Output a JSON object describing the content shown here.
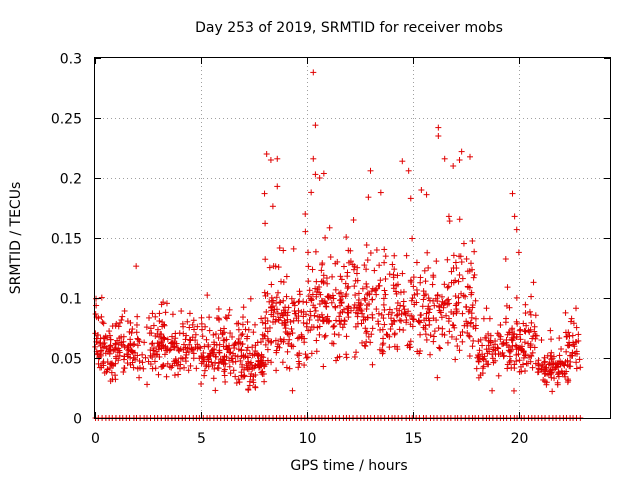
{
  "chart_data": {
    "type": "scatter",
    "title": "Day 253 of 2019, SRMTID for receiver mobs",
    "xlabel": "GPS time / hours",
    "ylabel": "SRMTID / TECUs",
    "xlim": [
      0,
      24.3
    ],
    "ylim": [
      0,
      0.3
    ],
    "x_ticks": [
      0,
      5,
      10,
      15,
      20
    ],
    "x_tick_labels": [
      "0",
      "5",
      "10",
      "15",
      "20"
    ],
    "y_ticks": [
      0,
      0.05,
      0.1,
      0.15,
      0.2,
      0.25,
      0.3
    ],
    "y_tick_labels": [
      "0",
      "0.05",
      "0.1",
      "0.15",
      "0.2",
      "0.25",
      "0.3"
    ],
    "grid": true,
    "marker": "+",
    "color": "#e00000",
    "series": [
      {
        "name": "SRMTID",
        "segments": [
          {
            "x_range": [
              0.0,
              1.5
            ],
            "center": 0.058,
            "spread": 0.022,
            "count": 110
          },
          {
            "x_range": [
              1.5,
              5.0
            ],
            "center": 0.06,
            "spread": 0.022,
            "count": 200
          },
          {
            "x_range": [
              5.0,
              7.2
            ],
            "center": 0.055,
            "spread": 0.022,
            "count": 160
          },
          {
            "x_range": [
              7.2,
              8.0
            ],
            "center": 0.045,
            "spread": 0.02,
            "count": 70
          },
          {
            "x_range": [
              8.0,
              10.0
            ],
            "center": 0.08,
            "spread": 0.035,
            "count": 150
          },
          {
            "x_range": [
              10.0,
              13.5
            ],
            "center": 0.095,
            "spread": 0.035,
            "count": 230
          },
          {
            "x_range": [
              13.5,
              18.0
            ],
            "center": 0.095,
            "spread": 0.04,
            "count": 270
          },
          {
            "x_range": [
              18.0,
              19.2
            ],
            "center": 0.055,
            "spread": 0.018,
            "count": 60
          },
          {
            "x_range": [
              19.2,
              20.8
            ],
            "center": 0.065,
            "spread": 0.025,
            "count": 110
          },
          {
            "x_range": [
              20.8,
              22.2
            ],
            "center": 0.04,
            "spread": 0.012,
            "count": 80
          },
          {
            "x_range": [
              22.2,
              22.9
            ],
            "center": 0.055,
            "spread": 0.022,
            "count": 45
          }
        ],
        "outliers": [
          {
            "x": 10.3,
            "y": 0.288
          },
          {
            "x": 10.4,
            "y": 0.244
          },
          {
            "x": 16.2,
            "y": 0.242
          },
          {
            "x": 16.2,
            "y": 0.235
          },
          {
            "x": 8.1,
            "y": 0.22
          },
          {
            "x": 8.3,
            "y": 0.215
          },
          {
            "x": 8.6,
            "y": 0.216
          },
          {
            "x": 10.3,
            "y": 0.216
          },
          {
            "x": 14.5,
            "y": 0.214
          },
          {
            "x": 17.3,
            "y": 0.222
          },
          {
            "x": 16.5,
            "y": 0.216
          },
          {
            "x": 17.2,
            "y": 0.215
          },
          {
            "x": 10.4,
            "y": 0.203
          },
          {
            "x": 13.0,
            "y": 0.206
          },
          {
            "x": 14.8,
            "y": 0.206
          },
          {
            "x": 19.7,
            "y": 0.187
          },
          {
            "x": 8.0,
            "y": 0.187
          },
          {
            "x": 8.6,
            "y": 0.193
          },
          {
            "x": 10.2,
            "y": 0.188
          },
          {
            "x": 10.6,
            "y": 0.2
          },
          {
            "x": 16.9,
            "y": 0.21
          },
          {
            "x": 12.9,
            "y": 0.184
          },
          {
            "x": 14.9,
            "y": 0.183
          },
          {
            "x": 15.4,
            "y": 0.19
          },
          {
            "x": 19.8,
            "y": 0.168
          },
          {
            "x": 19.9,
            "y": 0.157
          },
          {
            "x": 12.2,
            "y": 0.165
          },
          {
            "x": 16.7,
            "y": 0.168
          },
          {
            "x": 20.0,
            "y": 0.138
          },
          {
            "x": 13.3,
            "y": 0.14
          }
        ],
        "zero_markers_x_range": [
          0.0,
          22.9
        ],
        "zero_markers_count": 140
      }
    ]
  }
}
